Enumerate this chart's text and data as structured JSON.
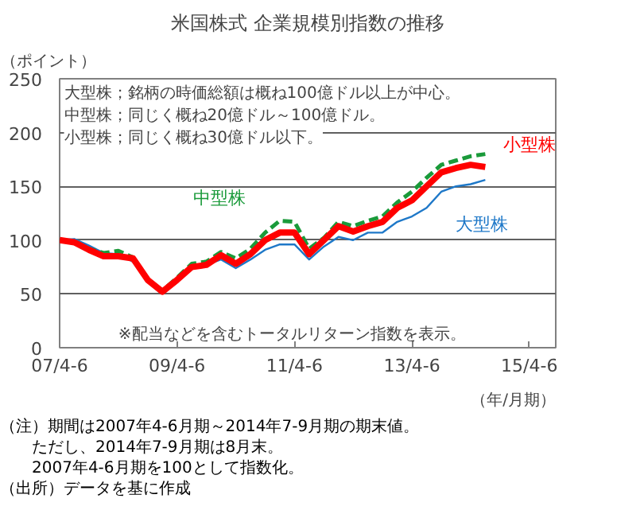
{
  "chart_data": {
    "type": "line",
    "title": "米国株式 企業規模別指数の推移",
    "ylabel": "（ポイント）",
    "xlabel": "（年/月期）",
    "categories": [
      "07/4-6",
      null,
      null,
      null,
      null,
      null,
      null,
      null,
      "09/4-6",
      null,
      null,
      null,
      null,
      null,
      null,
      null,
      "11/4-6",
      null,
      null,
      null,
      null,
      null,
      null,
      null,
      "13/4-6",
      null,
      null,
      null,
      null,
      null,
      null,
      null,
      "15/4-6",
      null
    ],
    "ylim": [
      0,
      250
    ],
    "yticks": [
      0,
      50,
      100,
      150,
      200,
      250
    ],
    "grid": "y",
    "series": [
      {
        "name": "大型株",
        "color": "#1e78c8",
        "line_style": "solid",
        "values": [
          100,
          101,
          95,
          88,
          87,
          80,
          65,
          54,
          62,
          73,
          77,
          82,
          74,
          82,
          91,
          96,
          96,
          82,
          94,
          103,
          100,
          107,
          107,
          117,
          122,
          130,
          145,
          150,
          152,
          156,
          null,
          null,
          null,
          null
        ]
      },
      {
        "name": "中型株",
        "color": "#1a9a3a",
        "line_style": "dashed",
        "values": [
          100,
          99,
          92,
          88,
          90,
          84,
          63,
          53,
          65,
          78,
          80,
          89,
          83,
          92,
          107,
          118,
          117,
          92,
          102,
          117,
          113,
          118,
          122,
          135,
          145,
          158,
          170,
          174,
          178,
          180,
          null,
          null,
          null,
          null
        ]
      },
      {
        "name": "小型株",
        "color": "#ff0000",
        "line_style": "solid",
        "values": [
          100,
          98,
          91,
          85,
          85,
          83,
          63,
          52,
          63,
          75,
          77,
          86,
          78,
          87,
          100,
          107,
          107,
          87,
          100,
          113,
          108,
          113,
          117,
          130,
          137,
          150,
          163,
          167,
          170,
          168,
          null,
          null,
          null,
          null
        ]
      }
    ],
    "annotations": [
      "大型株；銘柄の時価総額は概ね100億ドル以上が中心。",
      "中型株；同じく概ね20億ドル～100億ドル。",
      "小型株；同じく概ね30億ドル以下。",
      "※配当などを含むトータルリターン指数を表示。",
      "（注）期間は2007年4-6月期～2014年7-9月期の期末値。",
      "　　ただし、2014年7-9月期は8月末。",
      "　　2007年4-6月期を100として指数化。",
      "（出所）データを基に作成"
    ]
  }
}
